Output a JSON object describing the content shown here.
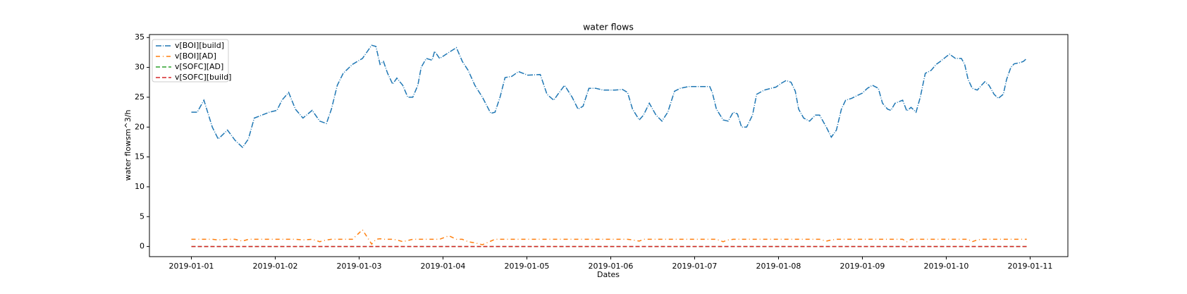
{
  "chart_data": {
    "type": "line",
    "title": "water flows",
    "xlabel": "Dates",
    "ylabel": "water flowsm^3/h",
    "x": [
      0,
      0.07,
      0.15,
      0.25,
      0.32,
      0.43,
      0.52,
      0.61,
      0.68,
      0.75,
      0.84,
      0.93,
      1.02,
      1.08,
      1.16,
      1.24,
      1.33,
      1.44,
      1.53,
      1.61,
      1.67,
      1.74,
      1.81,
      1.92,
      2.04,
      2.15,
      2.2,
      2.25,
      2.29,
      2.34,
      2.4,
      2.45,
      2.52,
      2.58,
      2.64,
      2.7,
      2.74,
      2.8,
      2.87,
      2.9,
      2.96,
      3.07,
      3.16,
      3.23,
      3.3,
      3.38,
      3.47,
      3.57,
      3.62,
      3.68,
      3.74,
      3.82,
      3.9,
      4.01,
      4.16,
      4.24,
      4.32,
      4.37,
      4.45,
      4.54,
      4.61,
      4.67,
      4.74,
      4.82,
      4.91,
      5.05,
      5.14,
      5.2,
      5.26,
      5.34,
      5.39,
      5.46,
      5.54,
      5.61,
      5.68,
      5.76,
      5.83,
      5.93,
      6.06,
      6.18,
      6.21,
      6.26,
      6.34,
      6.4,
      6.46,
      6.51,
      6.56,
      6.62,
      6.69,
      6.74,
      6.83,
      6.97,
      7.03,
      7.09,
      7.15,
      7.2,
      7.24,
      7.3,
      7.37,
      7.44,
      7.49,
      7.57,
      7.63,
      7.69,
      7.75,
      7.8,
      7.87,
      7.94,
      8,
      8.06,
      8.12,
      8.19,
      8.24,
      8.3,
      8.34,
      8.39,
      8.48,
      8.53,
      8.58,
      8.64,
      8.69,
      8.75,
      8.82,
      8.88,
      8.93,
      9,
      9.04,
      9.11,
      9.18,
      9.22,
      9.26,
      9.31,
      9.37,
      9.42,
      9.46,
      9.51,
      9.57,
      9.62,
      9.68,
      9.72,
      9.77,
      9.81,
      9.88,
      9.92,
      9.96
    ],
    "series": [
      {
        "name": "v[BOI][build]",
        "color": "#1f77b4",
        "dash": "8,2,1,2",
        "values": [
          22.5,
          22.5,
          24.5,
          20,
          18,
          19.5,
          17.8,
          16.6,
          18,
          21.5,
          22,
          22.5,
          22.8,
          24.5,
          25.8,
          23,
          21.5,
          22.8,
          21,
          20.6,
          23,
          27,
          29,
          30.5,
          31.5,
          33.7,
          33.5,
          30.5,
          31,
          29,
          27.2,
          28.2,
          27,
          25,
          25,
          27,
          30,
          31.5,
          31.2,
          32.7,
          31.5,
          32.5,
          33.3,
          31,
          29.5,
          27,
          25,
          22.3,
          22.5,
          25,
          28.3,
          28.5,
          29.3,
          28.7,
          28.8,
          25.5,
          24.5,
          25.5,
          27,
          25,
          23,
          23.5,
          26.5,
          26.5,
          26.2,
          26.2,
          26.3,
          25.8,
          23,
          21.2,
          22,
          24,
          22,
          21,
          22.5,
          26,
          26.5,
          26.8,
          26.8,
          26.8,
          25.8,
          23,
          21.2,
          21,
          22.5,
          22.2,
          20,
          20,
          22,
          25.5,
          26.2,
          26.7,
          27.3,
          27.8,
          27.5,
          26,
          23,
          21.5,
          21,
          22,
          22,
          20,
          18.3,
          19.5,
          23,
          24.5,
          24.8,
          25.3,
          25.7,
          26.5,
          27,
          26.5,
          24,
          23,
          22.8,
          24,
          24.5,
          22.7,
          23.3,
          22.5,
          25,
          29,
          29.5,
          30.5,
          31,
          31.8,
          32.2,
          31.5,
          31.5,
          30.5,
          28,
          26.5,
          26.2,
          27,
          27.6,
          27,
          25.5,
          24.8,
          25.5,
          28,
          30,
          30.6,
          30.8,
          31,
          31.5
        ]
      },
      {
        "name": "v[BOI][AD]",
        "color": "#ff7f0e",
        "dash": "6,4,1,4",
        "values": [
          1.2,
          1.2,
          1.2,
          1.2,
          1.1,
          1.2,
          1.2,
          0.9,
          1.2,
          1.2,
          1.2,
          1.2,
          1.2,
          1.2,
          1.2,
          1.2,
          1.1,
          1.2,
          0.8,
          1.1,
          1.2,
          1.2,
          1.2,
          1.2,
          2.8,
          0.4,
          1.2,
          1.3,
          1.2,
          1.2,
          1.2,
          1.1,
          0.8,
          1.0,
          1.2,
          1.2,
          1.2,
          1.2,
          1.2,
          1.2,
          1.2,
          1.8,
          1.2,
          1.2,
          0.8,
          0.6,
          0.3,
          0.9,
          1.2,
          1.2,
          1.2,
          1.2,
          1.2,
          1.2,
          1.2,
          1.2,
          1.2,
          1.2,
          1.2,
          1.2,
          1.2,
          1.2,
          1.2,
          1.2,
          1.2,
          1.2,
          1.2,
          1.2,
          1.1,
          0.9,
          1.2,
          1.2,
          1.2,
          1.2,
          1.2,
          1.2,
          1.2,
          1.2,
          1.2,
          1.2,
          1.2,
          1.2,
          0.8,
          1.1,
          1.2,
          1.2,
          1.2,
          1.2,
          1.2,
          1.2,
          1.2,
          1.2,
          1.2,
          1.2,
          1.2,
          1.2,
          1.2,
          1.2,
          1.2,
          1.2,
          1.2,
          0.9,
          1.1,
          1.2,
          1.2,
          1.2,
          1.2,
          1.2,
          1.2,
          1.2,
          1.2,
          1.2,
          1.2,
          1.2,
          1.2,
          1.2,
          1.2,
          0.8,
          1.2,
          1.2,
          1.2,
          1.2,
          1.2,
          1.2,
          1.2,
          1.2,
          1.2,
          1.2,
          1.2,
          1.2,
          1.2,
          0.8,
          1.1,
          1.2,
          1.2,
          1.2,
          1.2,
          1.2,
          1.2,
          1.2,
          1.2,
          1.2,
          1.2,
          1.2,
          1.2
        ]
      },
      {
        "name": "v[SOFC][AD]",
        "color": "#2ca02c",
        "dash": "6,3",
        "values": [
          0,
          0,
          0,
          0,
          0,
          0,
          0,
          0,
          0,
          0,
          0,
          0,
          0,
          0,
          0,
          0,
          0,
          0,
          0,
          0,
          0,
          0,
          0,
          0,
          0,
          0,
          0,
          0,
          0,
          0,
          0,
          0,
          0,
          0,
          0,
          0,
          0,
          0,
          0,
          0,
          0,
          0,
          0,
          0,
          0,
          0,
          0,
          0,
          0,
          0,
          0,
          0,
          0,
          0,
          0,
          0,
          0,
          0,
          0,
          0,
          0,
          0,
          0,
          0,
          0,
          0,
          0,
          0,
          0,
          0,
          0,
          0,
          0,
          0,
          0,
          0,
          0,
          0,
          0,
          0,
          0,
          0,
          0,
          0,
          0,
          0,
          0,
          0,
          0,
          0,
          0,
          0,
          0,
          0,
          0,
          0,
          0,
          0,
          0,
          0,
          0,
          0,
          0,
          0,
          0,
          0,
          0,
          0,
          0,
          0,
          0,
          0,
          0,
          0,
          0,
          0,
          0,
          0,
          0,
          0,
          0,
          0,
          0,
          0,
          0,
          0,
          0,
          0,
          0,
          0,
          0,
          0,
          0,
          0,
          0,
          0,
          0,
          0,
          0,
          0,
          0,
          0,
          0,
          0,
          0
        ]
      },
      {
        "name": "v[SOFC][build]",
        "color": "#d62728",
        "dash": "6,3",
        "values": [
          0,
          0,
          0,
          0,
          0,
          0,
          0,
          0,
          0,
          0,
          0,
          0,
          0,
          0,
          0,
          0,
          0,
          0,
          0,
          0,
          0,
          0,
          0,
          0,
          0,
          0,
          0,
          0,
          0,
          0,
          0,
          0,
          0,
          0,
          0,
          0,
          0,
          0,
          0,
          0,
          0,
          0,
          0,
          0,
          0,
          0,
          0,
          0,
          0,
          0,
          0,
          0,
          0,
          0,
          0,
          0,
          0,
          0,
          0,
          0,
          0,
          0,
          0,
          0,
          0,
          0,
          0,
          0,
          0,
          0,
          0,
          0,
          0,
          0,
          0,
          0,
          0,
          0,
          0,
          0,
          0,
          0,
          0,
          0,
          0,
          0,
          0,
          0,
          0,
          0,
          0,
          0,
          0,
          0,
          0,
          0,
          0,
          0,
          0,
          0,
          0,
          0,
          0,
          0,
          0,
          0,
          0,
          0,
          0,
          0,
          0,
          0,
          0,
          0,
          0,
          0,
          0,
          0,
          0,
          0,
          0,
          0,
          0,
          0,
          0,
          0,
          0,
          0,
          0,
          0,
          0,
          0,
          0,
          0,
          0,
          0,
          0,
          0,
          0,
          0,
          0,
          0,
          0,
          0,
          0
        ]
      }
    ],
    "xlim": [
      -0.5,
      10.45
    ],
    "xticks": [
      {
        "value": 0,
        "label": "2019-01-01"
      },
      {
        "value": 1,
        "label": "2019-01-02"
      },
      {
        "value": 2,
        "label": "2019-01-03"
      },
      {
        "value": 3,
        "label": "2019-01-04"
      },
      {
        "value": 4,
        "label": "2019-01-05"
      },
      {
        "value": 5,
        "label": "2019-01-06"
      },
      {
        "value": 6,
        "label": "2019-01-07"
      },
      {
        "value": 7,
        "label": "2019-01-08"
      },
      {
        "value": 8,
        "label": "2019-01-09"
      },
      {
        "value": 9,
        "label": "2019-01-10"
      },
      {
        "value": 10,
        "label": "2019-01-11"
      }
    ],
    "ylim": [
      -1.7,
      35.5
    ],
    "yticks": [
      0,
      5,
      10,
      15,
      20,
      25,
      30,
      35
    ],
    "legend": "upper left"
  }
}
